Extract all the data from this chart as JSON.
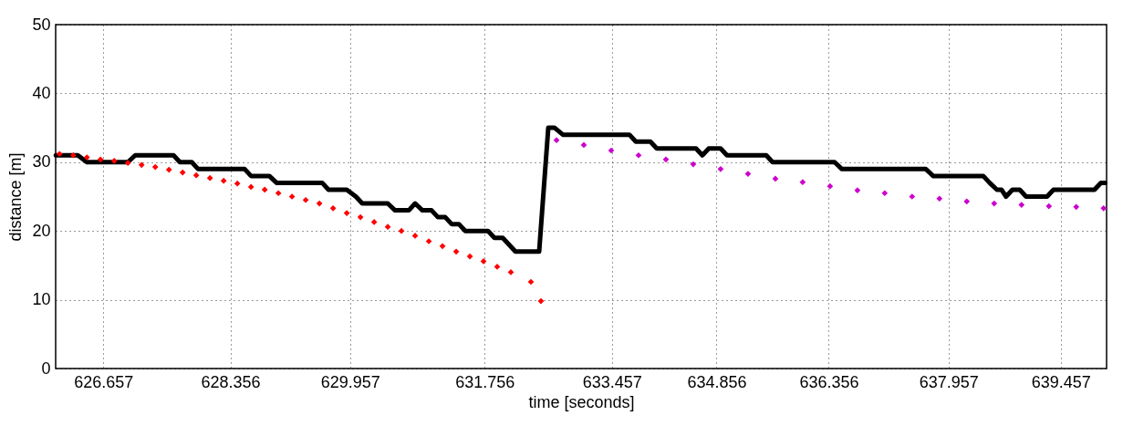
{
  "chart_data": {
    "type": "line",
    "xlabel": "time [seconds]",
    "ylabel": "distance [m]",
    "xlim": [
      626.02,
      640.07
    ],
    "ylim": [
      0,
      50
    ],
    "xticks": [
      626.657,
      628.356,
      629.957,
      631.756,
      633.457,
      634.856,
      636.356,
      637.957,
      639.457
    ],
    "yticks": [
      0,
      10,
      20,
      30,
      40,
      50
    ],
    "grid": true,
    "series": [
      {
        "color": "#000000",
        "marker": "none",
        "line_style": "solid",
        "x": [
          626.023,
          626.316,
          626.438,
          626.986,
          627.084,
          627.596,
          627.681,
          627.84,
          627.925,
          628.547,
          628.632,
          628.876,
          628.973,
          629.583,
          629.668,
          629.912,
          630.034,
          630.119,
          630.46,
          630.558,
          630.741,
          630.826,
          630.924,
          631.046,
          631.131,
          631.229,
          631.314,
          631.411,
          631.497,
          631.801,
          631.887,
          631.997,
          632.082,
          632.167,
          632.484,
          632.606,
          632.691,
          632.801,
          633.691,
          633.776,
          633.971,
          634.057,
          634.581,
          634.666,
          634.752,
          634.91,
          634.995,
          635.52,
          635.605,
          636.434,
          636.532,
          637.653,
          637.751,
          638.421,
          638.506,
          638.604,
          638.665,
          638.726,
          638.811,
          638.909,
          638.994,
          639.274,
          639.36,
          639.908,
          639.994,
          640.05
        ],
        "values": [
          31,
          31,
          30,
          30,
          31,
          31,
          30,
          30,
          29,
          29,
          28,
          28,
          27,
          27,
          26,
          26,
          25,
          24,
          24,
          23,
          23,
          24,
          23,
          23,
          22,
          22,
          21,
          21,
          20,
          20,
          19,
          19,
          18,
          17,
          17,
          35,
          35,
          34,
          34,
          33,
          33,
          32,
          32,
          31,
          32,
          32,
          31,
          31,
          30,
          30,
          29,
          29,
          28,
          28,
          27,
          26,
          26,
          25,
          26,
          26,
          25,
          25,
          26,
          26,
          27,
          27
        ]
      },
      {
        "type": "scatter",
        "color": "#ff0000",
        "marker": "diamond",
        "x": [
          626.072,
          626.255,
          626.438,
          626.62,
          626.803,
          626.986,
          627.169,
          627.352,
          627.535,
          627.718,
          627.9,
          628.083,
          628.266,
          628.449,
          628.632,
          628.815,
          628.998,
          629.18,
          629.363,
          629.546,
          629.729,
          629.912,
          630.095,
          630.278,
          630.46,
          630.643,
          630.826,
          631.009,
          631.192,
          631.375,
          631.558,
          631.74,
          631.923,
          632.106,
          632.374,
          632.508
        ],
        "values": [
          31.2,
          31,
          30.7,
          30.4,
          30.2,
          29.9,
          29.6,
          29.3,
          28.9,
          28.5,
          28.1,
          27.7,
          27.3,
          26.9,
          26.4,
          26,
          25.5,
          25,
          24.5,
          24,
          23.3,
          22.6,
          22,
          21.3,
          20.6,
          20,
          19.3,
          18.5,
          17.8,
          17,
          16.3,
          15.6,
          14.8,
          14,
          12.6,
          9.8
        ]
      },
      {
        "type": "scatter",
        "color": "#cc00cc",
        "marker": "diamond",
        "x": [
          632.716,
          633.081,
          633.447,
          633.813,
          634.179,
          634.544,
          634.91,
          635.276,
          635.642,
          636.007,
          636.373,
          636.739,
          637.104,
          637.47,
          637.836,
          638.201,
          638.567,
          638.933,
          639.299,
          639.664,
          640.03
        ],
        "values": [
          33.2,
          32.5,
          31.7,
          31,
          30.4,
          29.7,
          29,
          28.3,
          27.6,
          27.1,
          26.5,
          25.9,
          25.5,
          25,
          24.7,
          24.3,
          24,
          23.8,
          23.6,
          23.5,
          23.3
        ]
      }
    ]
  }
}
